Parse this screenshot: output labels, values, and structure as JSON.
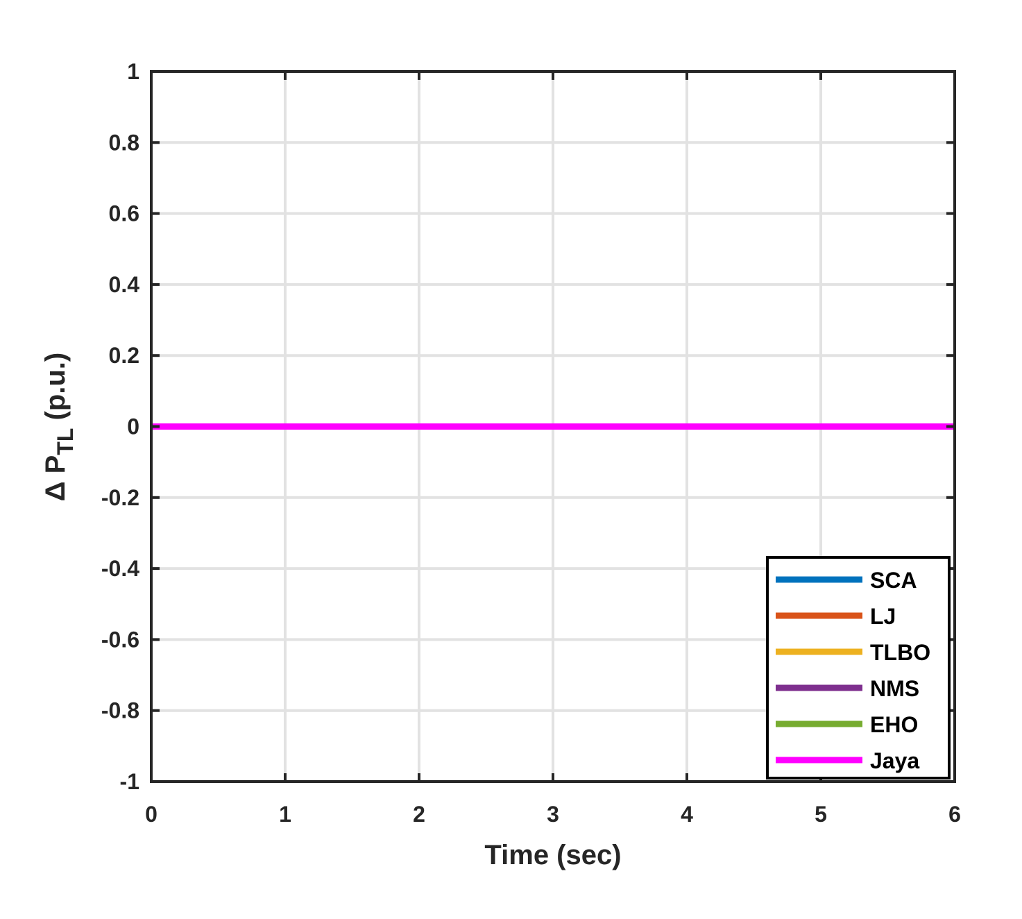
{
  "chart_data": {
    "type": "line",
    "xlabel": "Time (sec)",
    "ylabel": {
      "prefix": "Δ P",
      "subscript": "TL",
      "suffix": " (p.u.)"
    },
    "xlim": [
      0,
      6
    ],
    "ylim": [
      -1,
      1
    ],
    "xticks": [
      0,
      1,
      2,
      3,
      4,
      5,
      6
    ],
    "yticks": [
      -1,
      -0.8,
      -0.6,
      -0.4,
      -0.2,
      0,
      0.2,
      0.4,
      0.6,
      0.8,
      1
    ],
    "grid": true,
    "legend_position": "bottom-right",
    "series": [
      {
        "name": "SCA",
        "color": "#0072BD",
        "x": [
          0,
          6
        ],
        "y": [
          0,
          0
        ]
      },
      {
        "name": "LJ",
        "color": "#D95319",
        "x": [
          0,
          6
        ],
        "y": [
          0,
          0
        ]
      },
      {
        "name": "TLBO",
        "color": "#EDB120",
        "x": [
          0,
          6
        ],
        "y": [
          0,
          0
        ]
      },
      {
        "name": "NMS",
        "color": "#7E2F8E",
        "x": [
          0,
          6
        ],
        "y": [
          0,
          0
        ]
      },
      {
        "name": "EHO",
        "color": "#77AC30",
        "x": [
          0,
          6
        ],
        "y": [
          0,
          0
        ]
      },
      {
        "name": "Jaya",
        "color": "#FF00FF",
        "x": [
          0,
          6
        ],
        "y": [
          0,
          0
        ]
      }
    ]
  }
}
